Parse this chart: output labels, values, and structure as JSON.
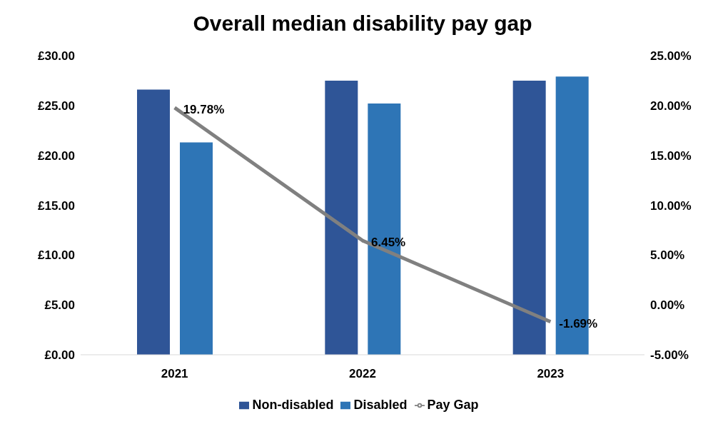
{
  "chart_data": {
    "type": "bar",
    "title": "Overall median disability pay gap",
    "categories": [
      "2021",
      "2022",
      "2023"
    ],
    "series": [
      {
        "name": "Non-disabled",
        "color": "#2f5597",
        "values": [
          26.6,
          27.5,
          27.5
        ]
      },
      {
        "name": "Disabled",
        "color": "#2e75b6",
        "values": [
          21.3,
          25.2,
          27.9
        ]
      },
      {
        "name": "Pay Gap",
        "type": "line",
        "axis": "y2",
        "color": "#808080",
        "values": [
          19.78,
          6.45,
          -1.69
        ],
        "value_labels": [
          "19.78%",
          "6.45%",
          "-1.69%"
        ]
      }
    ],
    "ylim": [
      0,
      30
    ],
    "yticks": [
      {
        "value": 0,
        "label": "£0.00"
      },
      {
        "value": 5,
        "label": "£5.00"
      },
      {
        "value": 10,
        "label": "£10.00"
      },
      {
        "value": 15,
        "label": "£15.00"
      },
      {
        "value": 20,
        "label": "£20.00"
      },
      {
        "value": 25,
        "label": "£25.00"
      },
      {
        "value": 30,
        "label": "£30.00"
      }
    ],
    "y2lim": [
      -5,
      25
    ],
    "y2ticks": [
      {
        "value": -5,
        "label": "-5.00%"
      },
      {
        "value": 0,
        "label": "0.00%"
      },
      {
        "value": 5,
        "label": "5.00%"
      },
      {
        "value": 10,
        "label": "10.00%"
      },
      {
        "value": 15,
        "label": "15.00%"
      },
      {
        "value": 20,
        "label": "20.00%"
      },
      {
        "value": 25,
        "label": "25.00%"
      }
    ],
    "grid": false,
    "legend": "bottom",
    "marker": "none",
    "line_style": "solid"
  }
}
